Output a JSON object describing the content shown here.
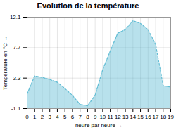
{
  "chart_data": {
    "type": "area",
    "title": "Evolution de la température",
    "xlabel": "heure par heure",
    "ylabel": "Température en °C",
    "x": [
      0,
      1,
      2,
      3,
      4,
      5,
      6,
      7,
      8,
      9,
      10,
      11,
      12,
      13,
      14,
      15,
      16,
      17,
      18,
      19
    ],
    "values": [
      1.0,
      3.6,
      3.4,
      3.1,
      2.7,
      1.8,
      0.8,
      -0.5,
      -0.7,
      0.8,
      4.5,
      7.2,
      9.8,
      10.3,
      11.6,
      11.2,
      10.3,
      8.2,
      2.2,
      2.0
    ],
    "color": "#62bdd4",
    "line_style": "dashed",
    "xlim": [
      0,
      19
    ],
    "xticks": [
      0,
      1,
      2,
      3,
      4,
      5,
      6,
      7,
      8,
      9,
      10,
      11,
      12,
      13,
      14,
      15,
      16,
      17,
      18,
      19
    ],
    "ylim": [
      -1.1,
      12.1
    ],
    "yticks": [
      -1.1,
      3.3,
      7.7,
      12.1
    ],
    "grid": true
  }
}
